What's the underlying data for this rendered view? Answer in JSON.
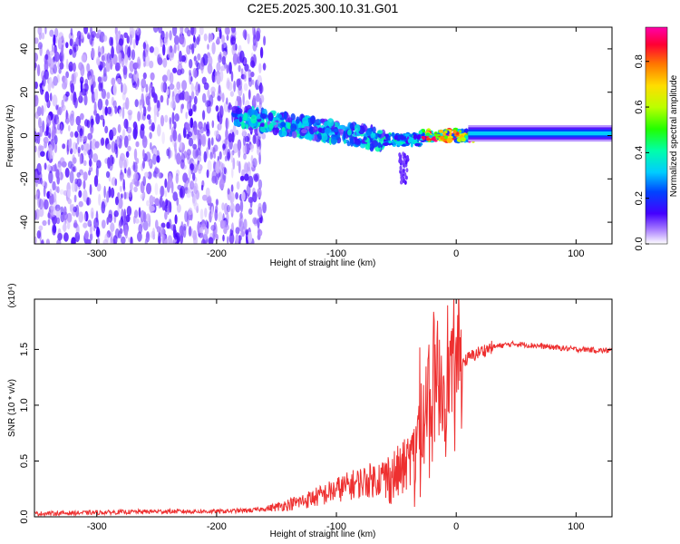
{
  "title": "C2E5.2025.300.10.31.G01",
  "chart_data": [
    {
      "type": "heatmap",
      "xlabel": "Height of straight line (km)",
      "ylabel": "Frequency (Hz)",
      "xlim": [
        -352,
        130
      ],
      "ylim": [
        -50,
        50
      ],
      "xticks": [
        -300,
        -200,
        -100,
        0,
        100
      ],
      "yticks": [
        -40,
        -20,
        0,
        20,
        40
      ],
      "colorbar": {
        "label": "Normalized spectral amplitude",
        "range": [
          0,
          0.95
        ],
        "ticks": [
          "0.0",
          "0.2",
          "0.4",
          "0.6",
          "0.8"
        ]
      },
      "regions": [
        {
          "x": [
            -352,
            -160
          ],
          "freq": [
            -50,
            50
          ],
          "amplitude": "low-noise"
        },
        {
          "x": [
            -185,
            -60
          ],
          "freq_center_start": 9,
          "freq_center_end": -2,
          "amplitude_max": 0.4
        },
        {
          "x": [
            -48,
            -40
          ],
          "freq": [
            -22,
            -8
          ],
          "amplitude_max": 0.1
        },
        {
          "x": [
            -30,
            15
          ],
          "freq_center": 0,
          "amplitude_max": 0.95
        },
        {
          "x": [
            15,
            130
          ],
          "freq_center": 1,
          "amplitude_max": 0.4
        }
      ]
    },
    {
      "type": "line",
      "xlabel": "Height of straight line (km)",
      "ylabel": "SNR (10 * v/v)",
      "yunit": "(x10⁴)",
      "xlim": [
        -352,
        130
      ],
      "ylim": [
        0,
        1.95
      ],
      "xticks": [
        -300,
        -200,
        -100,
        0,
        100
      ],
      "yticks": [
        "0.0",
        "0.5",
        "1.0",
        "1.5"
      ],
      "series": [
        {
          "color": "#ee3030",
          "x": [
            -352,
            -300,
            -250,
            -200,
            -170,
            -150,
            -130,
            -110,
            -100,
            -90,
            -80,
            -70,
            -60,
            -50,
            -45,
            -40,
            -35,
            -30,
            -25,
            -20,
            -15,
            -10,
            -5,
            0,
            5,
            10,
            20,
            30,
            40,
            50,
            60,
            70,
            80,
            90,
            100,
            110,
            120,
            130
          ],
          "y": [
            0.02,
            0.03,
            0.04,
            0.04,
            0.05,
            0.08,
            0.12,
            0.18,
            0.22,
            0.25,
            0.28,
            0.3,
            0.33,
            0.38,
            0.42,
            0.5,
            0.6,
            0.75,
            0.95,
            1.1,
            1.2,
            1.25,
            1.3,
            1.35,
            1.38,
            1.42,
            1.48,
            1.52,
            1.54,
            1.55,
            1.54,
            1.53,
            1.52,
            1.51,
            1.5,
            1.5,
            1.49,
            1.49
          ]
        }
      ]
    }
  ]
}
